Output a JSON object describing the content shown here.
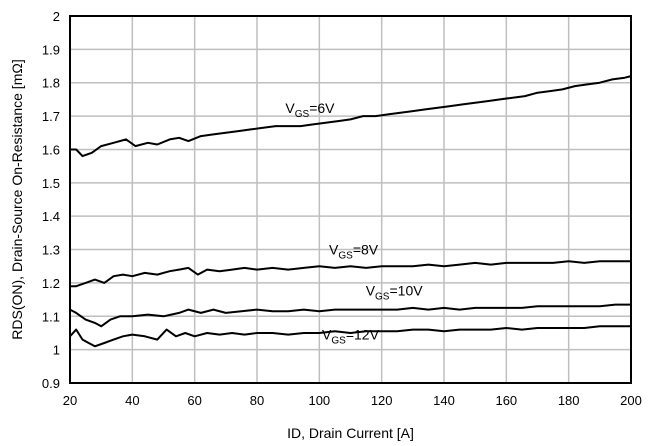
{
  "chart_data": {
    "type": "line",
    "title": "",
    "xlabel": "ID, Drain Current [A]",
    "ylabel": "RDS(ON), Drain-Source On-Resistance [mΩ]",
    "xlim": [
      20,
      200
    ],
    "ylim": [
      0.9,
      2.0
    ],
    "xticks": [
      20,
      40,
      60,
      80,
      100,
      120,
      140,
      160,
      180,
      200
    ],
    "yticks": [
      0.9,
      1.0,
      1.1,
      1.2,
      1.3,
      1.4,
      1.5,
      1.6,
      1.7,
      1.8,
      1.9,
      2.0
    ],
    "grid": true,
    "legend": "none",
    "colors": {
      "line": "#000000",
      "grid": "#bfbfbf",
      "frame": "#000000"
    },
    "series": [
      {
        "label_main": "V",
        "label_sub": "GS",
        "label_rest": "=6V",
        "label_at": [
          97,
          1.71
        ],
        "points": [
          [
            20,
            1.6
          ],
          [
            22,
            1.6
          ],
          [
            24,
            1.58
          ],
          [
            27,
            1.59
          ],
          [
            30,
            1.61
          ],
          [
            34,
            1.62
          ],
          [
            38,
            1.63
          ],
          [
            41,
            1.61
          ],
          [
            45,
            1.62
          ],
          [
            48,
            1.615
          ],
          [
            52,
            1.63
          ],
          [
            55,
            1.635
          ],
          [
            58,
            1.625
          ],
          [
            62,
            1.64
          ],
          [
            66,
            1.645
          ],
          [
            70,
            1.65
          ],
          [
            74,
            1.655
          ],
          [
            78,
            1.66
          ],
          [
            82,
            1.665
          ],
          [
            86,
            1.67
          ],
          [
            90,
            1.67
          ],
          [
            94,
            1.67
          ],
          [
            98,
            1.675
          ],
          [
            102,
            1.68
          ],
          [
            106,
            1.685
          ],
          [
            110,
            1.69
          ],
          [
            114,
            1.7
          ],
          [
            118,
            1.7
          ],
          [
            122,
            1.705
          ],
          [
            126,
            1.71
          ],
          [
            130,
            1.715
          ],
          [
            134,
            1.72
          ],
          [
            138,
            1.725
          ],
          [
            142,
            1.73
          ],
          [
            146,
            1.735
          ],
          [
            150,
            1.74
          ],
          [
            154,
            1.745
          ],
          [
            158,
            1.75
          ],
          [
            162,
            1.755
          ],
          [
            166,
            1.76
          ],
          [
            170,
            1.77
          ],
          [
            174,
            1.775
          ],
          [
            178,
            1.78
          ],
          [
            182,
            1.79
          ],
          [
            186,
            1.795
          ],
          [
            190,
            1.8
          ],
          [
            194,
            1.81
          ],
          [
            198,
            1.815
          ],
          [
            200,
            1.82
          ]
        ]
      },
      {
        "label_main": "V",
        "label_sub": "GS",
        "label_rest": "=8V",
        "label_at": [
          111,
          1.285
        ],
        "points": [
          [
            20,
            1.19
          ],
          [
            22,
            1.19
          ],
          [
            25,
            1.2
          ],
          [
            28,
            1.21
          ],
          [
            31,
            1.2
          ],
          [
            34,
            1.22
          ],
          [
            37,
            1.225
          ],
          [
            40,
            1.22
          ],
          [
            44,
            1.23
          ],
          [
            48,
            1.225
          ],
          [
            52,
            1.235
          ],
          [
            55,
            1.24
          ],
          [
            58,
            1.245
          ],
          [
            61,
            1.225
          ],
          [
            64,
            1.24
          ],
          [
            68,
            1.235
          ],
          [
            72,
            1.24
          ],
          [
            76,
            1.245
          ],
          [
            80,
            1.24
          ],
          [
            85,
            1.245
          ],
          [
            90,
            1.24
          ],
          [
            95,
            1.245
          ],
          [
            100,
            1.25
          ],
          [
            105,
            1.245
          ],
          [
            110,
            1.25
          ],
          [
            115,
            1.245
          ],
          [
            120,
            1.25
          ],
          [
            125,
            1.25
          ],
          [
            130,
            1.25
          ],
          [
            135,
            1.255
          ],
          [
            140,
            1.25
          ],
          [
            145,
            1.255
          ],
          [
            150,
            1.26
          ],
          [
            155,
            1.255
          ],
          [
            160,
            1.26
          ],
          [
            165,
            1.26
          ],
          [
            170,
            1.26
          ],
          [
            175,
            1.26
          ],
          [
            180,
            1.265
          ],
          [
            185,
            1.26
          ],
          [
            190,
            1.265
          ],
          [
            195,
            1.265
          ],
          [
            200,
            1.265
          ]
        ]
      },
      {
        "label_main": "V",
        "label_sub": "GS",
        "label_rest": "=10V",
        "label_at": [
          124,
          1.162
        ],
        "points": [
          [
            20,
            1.12
          ],
          [
            22,
            1.11
          ],
          [
            25,
            1.09
          ],
          [
            28,
            1.08
          ],
          [
            30,
            1.07
          ],
          [
            33,
            1.09
          ],
          [
            36,
            1.1
          ],
          [
            40,
            1.1
          ],
          [
            45,
            1.105
          ],
          [
            50,
            1.1
          ],
          [
            55,
            1.11
          ],
          [
            58,
            1.12
          ],
          [
            62,
            1.11
          ],
          [
            66,
            1.12
          ],
          [
            70,
            1.11
          ],
          [
            75,
            1.115
          ],
          [
            80,
            1.12
          ],
          [
            85,
            1.115
          ],
          [
            90,
            1.115
          ],
          [
            95,
            1.12
          ],
          [
            100,
            1.115
          ],
          [
            105,
            1.12
          ],
          [
            110,
            1.12
          ],
          [
            115,
            1.12
          ],
          [
            120,
            1.12
          ],
          [
            125,
            1.12
          ],
          [
            130,
            1.125
          ],
          [
            135,
            1.12
          ],
          [
            140,
            1.125
          ],
          [
            145,
            1.12
          ],
          [
            150,
            1.125
          ],
          [
            155,
            1.125
          ],
          [
            160,
            1.125
          ],
          [
            165,
            1.125
          ],
          [
            170,
            1.13
          ],
          [
            175,
            1.13
          ],
          [
            180,
            1.13
          ],
          [
            185,
            1.13
          ],
          [
            190,
            1.13
          ],
          [
            195,
            1.135
          ],
          [
            200,
            1.135
          ]
        ]
      },
      {
        "label_main": "V",
        "label_sub": "GS",
        "label_rest": "=12V",
        "label_at": [
          110,
          1.03
        ],
        "points": [
          [
            20,
            1.04
          ],
          [
            22,
            1.06
          ],
          [
            24,
            1.03
          ],
          [
            26,
            1.02
          ],
          [
            28,
            1.01
          ],
          [
            31,
            1.02
          ],
          [
            34,
            1.03
          ],
          [
            37,
            1.04
          ],
          [
            40,
            1.045
          ],
          [
            44,
            1.04
          ],
          [
            48,
            1.03
          ],
          [
            51,
            1.06
          ],
          [
            54,
            1.04
          ],
          [
            57,
            1.05
          ],
          [
            60,
            1.04
          ],
          [
            64,
            1.05
          ],
          [
            68,
            1.045
          ],
          [
            72,
            1.05
          ],
          [
            76,
            1.045
          ],
          [
            80,
            1.05
          ],
          [
            85,
            1.05
          ],
          [
            90,
            1.045
          ],
          [
            95,
            1.05
          ],
          [
            100,
            1.05
          ],
          [
            105,
            1.055
          ],
          [
            110,
            1.05
          ],
          [
            115,
            1.055
          ],
          [
            120,
            1.055
          ],
          [
            125,
            1.055
          ],
          [
            130,
            1.06
          ],
          [
            135,
            1.06
          ],
          [
            140,
            1.055
          ],
          [
            145,
            1.06
          ],
          [
            150,
            1.06
          ],
          [
            155,
            1.06
          ],
          [
            160,
            1.065
          ],
          [
            165,
            1.06
          ],
          [
            170,
            1.065
          ],
          [
            175,
            1.065
          ],
          [
            180,
            1.065
          ],
          [
            185,
            1.065
          ],
          [
            190,
            1.07
          ],
          [
            195,
            1.07
          ],
          [
            200,
            1.07
          ]
        ]
      }
    ]
  }
}
